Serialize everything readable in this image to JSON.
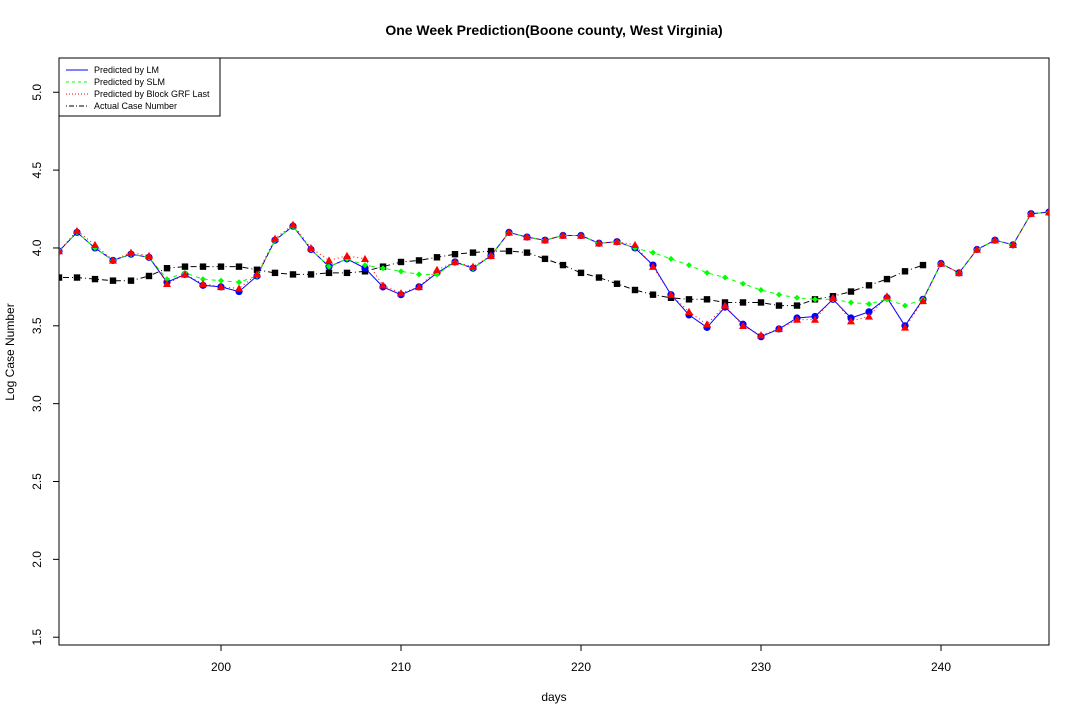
{
  "chart_data": {
    "type": "line",
    "title": "One Week Prediction(Boone county, West Virginia)",
    "xlabel": "days",
    "ylabel": "Log Case Number",
    "xlim": [
      191,
      246
    ],
    "ylim": [
      1.45,
      5.22
    ],
    "x_ticks": [
      200,
      210,
      220,
      230,
      240
    ],
    "y_ticks": [
      1.5,
      2.0,
      2.5,
      3.0,
      3.5,
      4.0,
      4.5,
      5.0
    ],
    "grid": false,
    "legend_position": "top-left",
    "legend": [
      "Predicted by LM",
      "Predicted by SLM",
      "Predicted by Block GRF Last",
      "Actual Case Number"
    ],
    "x": [
      191,
      192,
      193,
      194,
      195,
      196,
      197,
      198,
      199,
      200,
      201,
      202,
      203,
      204,
      205,
      206,
      207,
      208,
      209,
      210,
      211,
      212,
      213,
      214,
      215,
      216,
      217,
      218,
      219,
      220,
      221,
      222,
      223,
      224,
      225,
      226,
      227,
      228,
      229,
      230,
      231,
      232,
      233,
      234,
      235,
      236,
      237,
      238,
      239,
      240,
      241,
      242,
      243,
      244,
      245,
      246
    ],
    "series": [
      {
        "name": "Predicted by LM",
        "color": "#0000ff",
        "line_style": "solid",
        "marker": "circle",
        "values": [
          3.98,
          4.1,
          4.0,
          3.92,
          3.96,
          3.94,
          3.78,
          3.83,
          3.76,
          3.75,
          3.72,
          3.82,
          4.05,
          4.14,
          3.99,
          3.88,
          3.93,
          3.87,
          3.75,
          3.7,
          3.75,
          3.84,
          3.91,
          3.87,
          3.95,
          4.1,
          4.07,
          4.05,
          4.08,
          4.08,
          4.03,
          4.04,
          4.0,
          3.89,
          3.7,
          3.57,
          3.49,
          3.62,
          3.51,
          3.43,
          3.48,
          3.55,
          3.56,
          3.67,
          3.55,
          3.59,
          3.68,
          3.5,
          3.67,
          3.9,
          3.84,
          3.99,
          4.05,
          4.02,
          4.22,
          4.23
        ]
      },
      {
        "name": "Predicted by SLM",
        "color": "#00ff00",
        "line_style": "dashed",
        "marker": "diamond",
        "values": [
          3.98,
          4.1,
          4.0,
          3.92,
          3.96,
          3.94,
          3.8,
          3.84,
          3.8,
          3.79,
          3.78,
          3.82,
          4.05,
          4.14,
          3.99,
          3.88,
          3.93,
          3.89,
          3.87,
          3.85,
          3.83,
          3.83,
          3.91,
          3.87,
          3.95,
          4.1,
          4.07,
          4.05,
          4.08,
          4.08,
          4.03,
          4.04,
          4.0,
          3.97,
          3.93,
          3.89,
          3.84,
          3.81,
          3.77,
          3.73,
          3.7,
          3.68,
          3.67,
          3.67,
          3.65,
          3.64,
          3.67,
          3.63,
          3.67,
          3.9,
          3.84,
          3.99,
          4.05,
          4.02,
          4.22,
          4.23
        ]
      },
      {
        "name": "Predicted by Block GRF Last",
        "color": "#ff0000",
        "line_style": "dotted",
        "marker": "triangle",
        "values": [
          3.98,
          4.11,
          4.02,
          3.92,
          3.97,
          3.95,
          3.77,
          3.83,
          3.77,
          3.75,
          3.74,
          3.83,
          4.06,
          4.15,
          4.0,
          3.92,
          3.95,
          3.93,
          3.76,
          3.71,
          3.75,
          3.86,
          3.91,
          3.88,
          3.95,
          4.1,
          4.07,
          4.05,
          4.08,
          4.08,
          4.03,
          4.04,
          4.02,
          3.88,
          3.7,
          3.59,
          3.51,
          3.63,
          3.5,
          3.44,
          3.48,
          3.54,
          3.54,
          3.68,
          3.53,
          3.56,
          3.69,
          3.49,
          3.66,
          3.9,
          3.84,
          3.99,
          4.05,
          4.02,
          4.22,
          4.23
        ]
      },
      {
        "name": "Actual Case Number",
        "color": "#000000",
        "line_style": "dotdash",
        "marker": "square",
        "x": [
          191,
          192,
          193,
          194,
          195,
          196,
          197,
          198,
          199,
          200,
          201,
          202,
          203,
          204,
          205,
          206,
          207,
          208,
          209,
          210,
          211,
          212,
          213,
          214,
          215,
          216,
          217,
          218,
          219,
          220,
          221,
          222,
          223,
          224,
          225,
          226,
          227,
          228,
          229,
          230,
          231,
          232,
          233,
          234,
          235,
          236,
          237,
          238,
          239
        ],
        "values": [
          3.81,
          3.81,
          3.8,
          3.79,
          3.79,
          3.82,
          3.87,
          3.88,
          3.88,
          3.88,
          3.88,
          3.86,
          3.84,
          3.83,
          3.83,
          3.84,
          3.84,
          3.85,
          3.88,
          3.91,
          3.92,
          3.94,
          3.96,
          3.97,
          3.98,
          3.98,
          3.97,
          3.93,
          3.89,
          3.84,
          3.81,
          3.77,
          3.73,
          3.7,
          3.68,
          3.67,
          3.67,
          3.65,
          3.65,
          3.65,
          3.63,
          3.63,
          3.67,
          3.69,
          3.72,
          3.76,
          3.8,
          3.85,
          3.89
        ]
      }
    ]
  }
}
